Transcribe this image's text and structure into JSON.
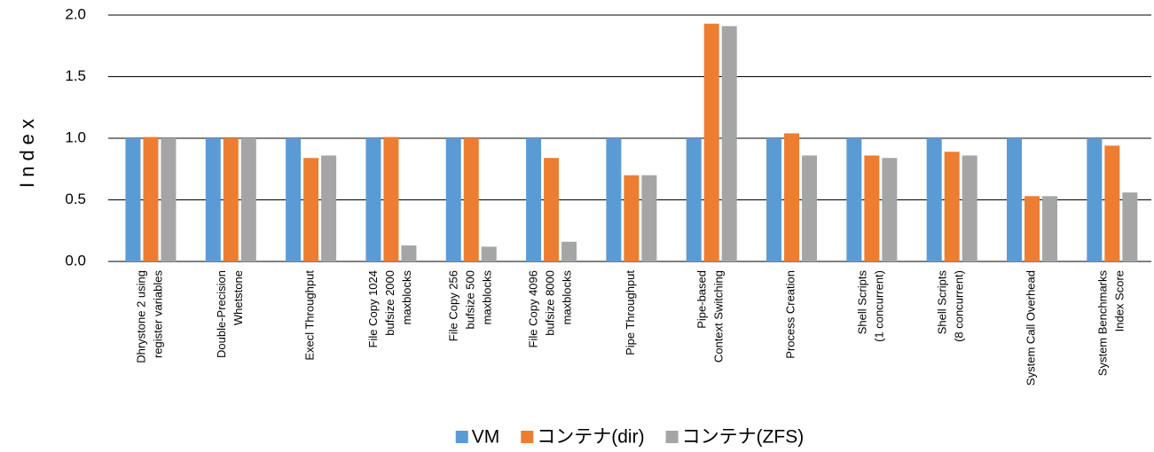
{
  "chart_data": {
    "type": "bar",
    "ylabel": "Index",
    "categories": [
      "Dhrystone 2 using\nregister variables",
      "Double-Precision\nWhetstone",
      "Execl Throughput",
      "File Copy 1024\nbufsize 2000\nmaxblocks",
      "File Copy 256\nbufsize 500\nmaxblocks",
      "File Copy 4096\nbufsize 8000\nmaxblocks",
      "Pipe Throughput",
      "Pipe-based\nContext Switching",
      "Process Creation",
      "Shell Scripts\n(1 concurrent)",
      "Shell Scripts\n(8 concurrent)",
      "System Call Overhead",
      "System Benchmarks\nIndex Score"
    ],
    "series": [
      {
        "name": "VM",
        "color": "#5b9bd5",
        "values": [
          1.0,
          1.0,
          1.0,
          1.0,
          1.0,
          1.0,
          1.0,
          1.0,
          1.0,
          1.0,
          1.0,
          1.0,
          1.0
        ]
      },
      {
        "name": "コンテナ(dir)",
        "color": "#ed7d31",
        "values": [
          1.01,
          1.0,
          0.84,
          1.01,
          1.0,
          0.84,
          0.7,
          1.93,
          1.04,
          0.86,
          0.89,
          0.53,
          0.94
        ]
      },
      {
        "name": "コンテナ(ZFS)",
        "color": "#a5a5a5",
        "values": [
          1.0,
          1.0,
          0.86,
          0.13,
          0.12,
          0.16,
          0.7,
          1.91,
          0.86,
          0.84,
          0.86,
          0.53,
          0.56
        ]
      }
    ],
    "ylim": [
      0,
      2
    ],
    "yticks": [
      {
        "value": 0,
        "label": "0.0"
      },
      {
        "value": 0.5,
        "label": "0.5"
      },
      {
        "value": 1,
        "label": "1.0"
      },
      {
        "value": 1.5,
        "label": "1.5"
      },
      {
        "value": 2,
        "label": "2.0"
      }
    ],
    "grid": true,
    "legend": "bottom"
  }
}
